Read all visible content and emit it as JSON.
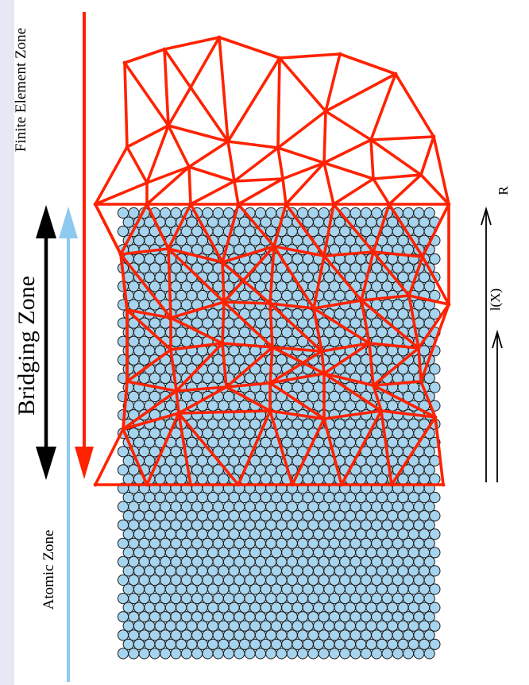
{
  "labels": {
    "finite_element_zone": "Finite Element Zone",
    "bridging_zone": "Bridging Zone",
    "atomic_zone": "Atomic Zone",
    "r_label": "R",
    "phi_label": "l(X)"
  },
  "colors": {
    "mesh_red": "#ff2200",
    "atom_fill": "#a6d4ef",
    "atom_stroke": "#1a1a1a",
    "bridging_arrow": "#000000",
    "atomic_arrow": "#8ec9ef",
    "left_strip": "#e8e8f4"
  }
}
